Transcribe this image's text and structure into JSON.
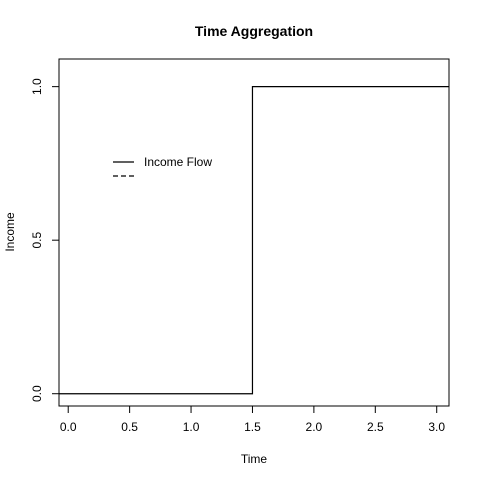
{
  "chart_data": {
    "type": "line",
    "title": "Time Aggregation",
    "xlabel": "Time",
    "ylabel": "Income",
    "xlim": [
      -0.075,
      3.1
    ],
    "ylim": [
      -0.04,
      1.09
    ],
    "x_ticks": [
      0.0,
      0.5,
      1.0,
      1.5,
      2.0,
      2.5,
      3.0
    ],
    "x_tick_labels": [
      "0.0",
      "0.5",
      "1.0",
      "1.5",
      "2.0",
      "2.5",
      "3.0"
    ],
    "y_ticks": [
      0.0,
      0.5,
      1.0
    ],
    "y_tick_labels": [
      "0.0",
      "0.5",
      "1.0"
    ],
    "grid": false,
    "legend_position": "upper-left",
    "series": [
      {
        "name": "Income Flow",
        "line_style": "solid",
        "color": "#000000",
        "x": [
          -0.075,
          1.5,
          1.5,
          3.1
        ],
        "y": [
          0,
          0,
          1,
          1
        ]
      },
      {
        "name": "",
        "line_style": "dashed",
        "color": "#000000",
        "x": [],
        "y": []
      }
    ]
  }
}
